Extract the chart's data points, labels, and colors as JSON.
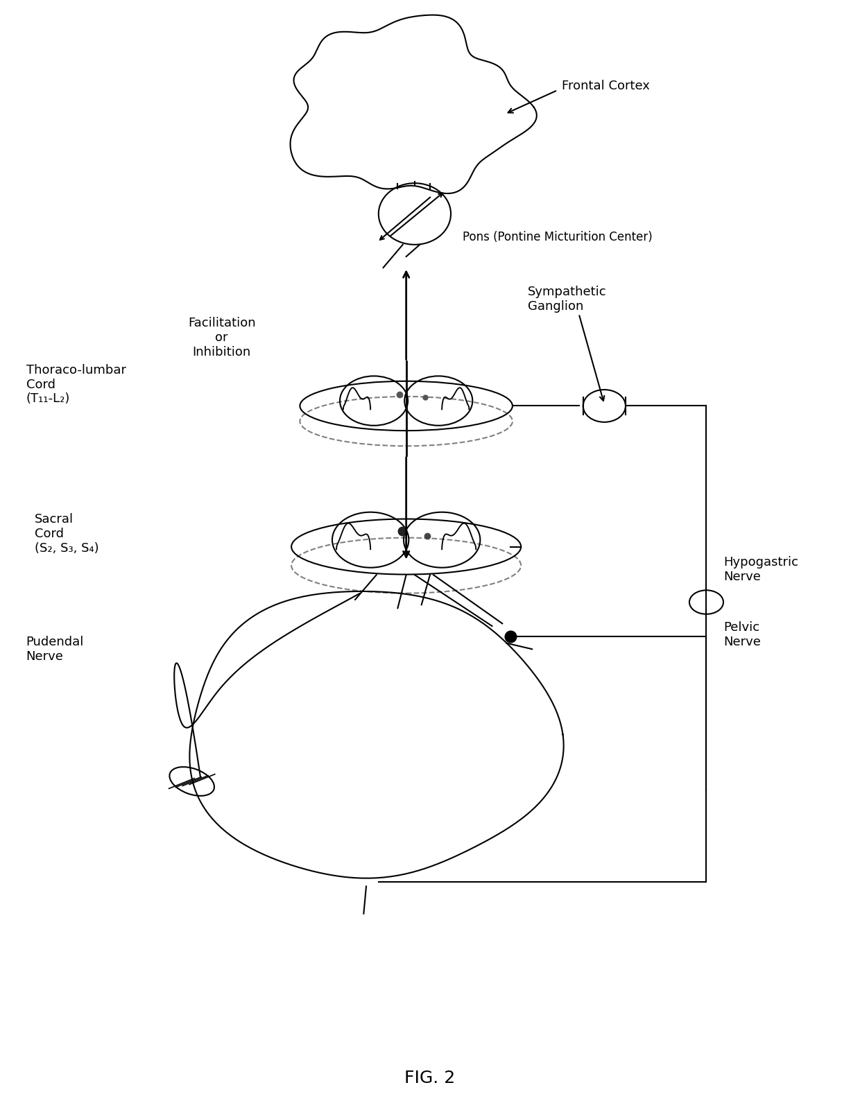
{
  "title": "FIG. 2",
  "background_color": "#ffffff",
  "labels": {
    "frontal_cortex": "Frontal Cortex",
    "pons": "Pons (Pontine Micturition Center)",
    "facilitation": "Facilitation\nor\nInhibition",
    "sympathetic_ganglion": "Sympathetic\nGanglion",
    "thoraco_lumbar": "Thoraco-lumbar\nCord\n(T₁₁-L₂)",
    "sacral_cord": "Sacral\nCord\n(S₂, S₃, S₄)",
    "pudendal_nerve": "Pudendal\nNerve",
    "pelvic_nerve": "Pelvic\nNerve",
    "hypogastric_nerve": "Hypogastric\nNerve"
  },
  "font_size": 13,
  "line_color": "#000000",
  "line_width": 1.5
}
